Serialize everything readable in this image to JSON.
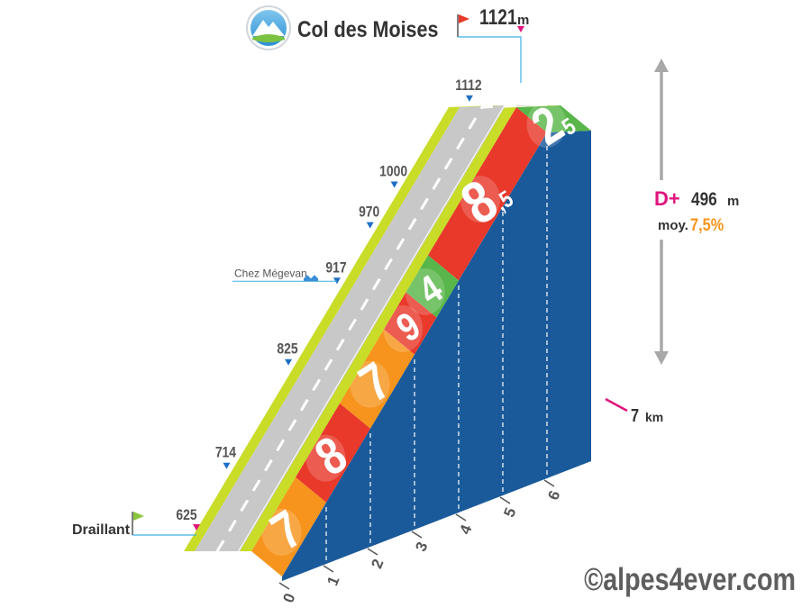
{
  "chart_data": {
    "type": "area",
    "title": "Col des Moises",
    "summit": {
      "name": "Col des Moises",
      "altitude": "1121",
      "unit": "m"
    },
    "start": {
      "name": "Draillant",
      "altitude": "625"
    },
    "altitude_labels": [
      {
        "km": 0,
        "value": "625"
      },
      {
        "km": 1.05,
        "value": "714"
      },
      {
        "km": 2.45,
        "value": "825"
      },
      {
        "km": 3.55,
        "value": "917",
        "place": "Chez Mégevan"
      },
      {
        "km": 4.3,
        "value": "970"
      },
      {
        "km": 4.85,
        "value": "1000"
      },
      {
        "km": 6.55,
        "value": "1112"
      }
    ],
    "x": [
      0,
      1,
      2,
      3,
      4,
      5,
      6,
      7
    ],
    "xlim": [
      0,
      7
    ],
    "x_unit": "km",
    "x_end_label": "7",
    "segments": [
      {
        "from": 0,
        "to": 1,
        "gradient": 7,
        "label": "7",
        "color": "#f7941d"
      },
      {
        "from": 1,
        "to": 2,
        "gradient": 8,
        "label": "8",
        "color": "#e8392b"
      },
      {
        "from": 2,
        "to": 3,
        "gradient": 7,
        "label": "7",
        "color": "#f7941d"
      },
      {
        "from": 3,
        "to": 3.5,
        "gradient": 9,
        "label": "9",
        "color": "#e8392b"
      },
      {
        "from": 3.5,
        "to": 4,
        "gradient": 4,
        "label": "4",
        "color": "#59b64a"
      },
      {
        "from": 4,
        "to": 6,
        "gradient": 8.5,
        "label_main": "8",
        "label_dec": ",5",
        "color": "#e8392b"
      },
      {
        "from": 6,
        "to": 7,
        "gradient": 2.5,
        "label_main": "2",
        "label_dec": "5",
        "color": "#59b64a"
      }
    ],
    "elevation_gain": {
      "prefix": "D+",
      "value": "496",
      "unit": "m"
    },
    "average": {
      "label": "moy.",
      "value": "7,5%"
    }
  },
  "copyright": "©alpes4ever.com",
  "colors": {
    "base": "#1a5a9a",
    "road": "#c8c8c8",
    "verge": "#c8dc28",
    "marker_blue": "#1d6fc4",
    "marker_pink": "#e0157d",
    "flag_red": "#e8392b",
    "flag_green": "#8cc43c",
    "gain": "#e0157d",
    "avg": "#f7941d"
  }
}
